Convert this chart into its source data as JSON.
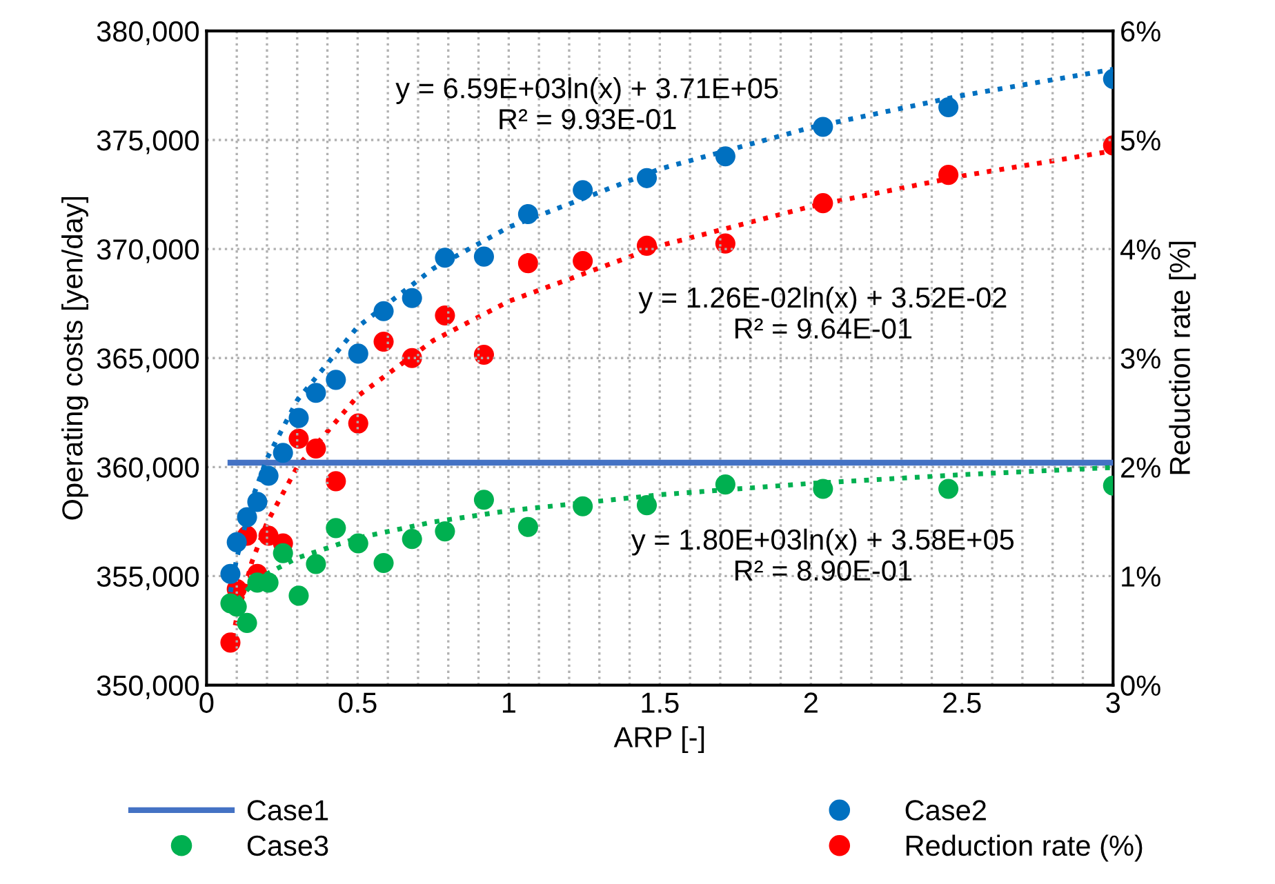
{
  "chart_data": {
    "type": "scatter",
    "xlabel": "ARP [-]",
    "ylabel": "Operating costs [yen/day]",
    "y2label": "Reduction rate [%]",
    "xlim": [
      0,
      3
    ],
    "ylim": [
      350000,
      380000
    ],
    "y2lim": [
      0,
      6
    ],
    "xticks": [
      0,
      {
        "value": 0.1,
        "label": null
      },
      {
        "value": 0.2,
        "label": null
      },
      {
        "value": 0.3,
        "label": null
      },
      {
        "value": 0.4,
        "label": null
      },
      0.5,
      {
        "value": 0.6,
        "label": null
      },
      {
        "value": 0.7,
        "label": null
      },
      {
        "value": 0.8,
        "label": null
      },
      {
        "value": 0.9,
        "label": null
      },
      1,
      {
        "value": 1.1,
        "label": null
      },
      {
        "value": 1.2,
        "label": null
      },
      {
        "value": 1.3,
        "label": null
      },
      {
        "value": 1.4,
        "label": null
      },
      1.5,
      {
        "value": 1.6,
        "label": null
      },
      {
        "value": 1.7,
        "label": null
      },
      {
        "value": 1.8,
        "label": null
      },
      {
        "value": 1.9,
        "label": null
      },
      2,
      {
        "value": 2.1,
        "label": null
      },
      {
        "value": 2.2,
        "label": null
      },
      {
        "value": 2.3,
        "label": null
      },
      {
        "value": 2.4,
        "label": null
      },
      2.5,
      {
        "value": 2.6,
        "label": null
      },
      {
        "value": 2.7,
        "label": null
      },
      {
        "value": 2.8,
        "label": null
      },
      {
        "value": 2.9,
        "label": null
      },
      3
    ],
    "yticks": [
      {
        "value": 350000,
        "label": "350,000"
      },
      {
        "value": 355000,
        "label": "355,000"
      },
      {
        "value": 360000,
        "label": "360,000"
      },
      {
        "value": 365000,
        "label": "365,000"
      },
      {
        "value": 370000,
        "label": "370,000"
      },
      {
        "value": 375000,
        "label": "375,000"
      },
      {
        "value": 380000,
        "label": "380,000"
      }
    ],
    "y2ticks": [
      {
        "value": 0,
        "label": "0%"
      },
      {
        "value": 1,
        "label": "1%"
      },
      {
        "value": 2,
        "label": "2%"
      },
      {
        "value": 3,
        "label": "3%"
      },
      {
        "value": 4,
        "label": "4%"
      },
      {
        "value": 5,
        "label": "5%"
      },
      {
        "value": 6,
        "label": "6%"
      }
    ],
    "grid": true,
    "legend": "bottom",
    "marker": "circle",
    "series": [
      {
        "name": "Case1",
        "type": "line",
        "marker": "none",
        "color": "#4472c4",
        "x": [
          0.079,
          3.0
        ],
        "values": [
          360200,
          360200
        ]
      },
      {
        "name": "Case2",
        "color": "#0070c0",
        "x": [
          0.079,
          0.1,
          0.134,
          0.168,
          0.205,
          0.253,
          0.305,
          0.362,
          0.428,
          0.502,
          0.586,
          0.68,
          0.789,
          0.918,
          1.064,
          1.245,
          1.457,
          1.717,
          2.04,
          2.455,
          3.0
        ],
        "values": [
          355100,
          356550,
          357700,
          358400,
          359600,
          360650,
          362250,
          363400,
          364000,
          365200,
          367150,
          367750,
          369600,
          369650,
          371600,
          372700,
          373250,
          374250,
          375600,
          376500,
          377800
        ]
      },
      {
        "name": "Case3",
        "color": "#00b050",
        "x": [
          0.079,
          0.1,
          0.134,
          0.168,
          0.205,
          0.253,
          0.305,
          0.362,
          0.428,
          0.502,
          0.586,
          0.68,
          0.789,
          0.918,
          1.064,
          1.245,
          1.457,
          1.717,
          2.04,
          2.455,
          3.0
        ],
        "values": [
          353750,
          353600,
          352850,
          354700,
          354700,
          356050,
          354100,
          355550,
          357200,
          356500,
          355600,
          356700,
          357050,
          358500,
          357250,
          358200,
          358250,
          359200,
          359000,
          359000,
          359150
        ]
      },
      {
        "name": "Reduction rate (%)",
        "axis": "y2",
        "color": "#ff0000",
        "x": [
          0.079,
          0.1,
          0.134,
          0.168,
          0.205,
          0.253,
          0.305,
          0.362,
          0.428,
          0.502,
          0.586,
          0.68,
          0.789,
          0.918,
          1.064,
          1.245,
          1.457,
          1.717,
          2.04,
          2.455,
          3.0
        ],
        "values": [
          0.39,
          0.88,
          1.37,
          1.02,
          1.37,
          1.3,
          2.26,
          2.17,
          1.87,
          2.4,
          3.15,
          3.0,
          3.39,
          3.03,
          3.87,
          3.89,
          4.03,
          4.05,
          4.42,
          4.68,
          4.95
        ]
      },
      {
        "type": "line",
        "marker": "none",
        "line_style": "dotted",
        "color": "#0070c0",
        "x": [
          0.079,
          0.1,
          0.15,
          0.2,
          0.3,
          0.5,
          0.75,
          1,
          1.5,
          2,
          2.5,
          3
        ],
        "values": [
          354270,
          355830,
          358500,
          360390,
          363060,
          366430,
          369100,
          371000,
          373670,
          375570,
          377040,
          378240
        ]
      },
      {
        "type": "line",
        "marker": "none",
        "line_style": "dotted",
        "color": "#00b050",
        "x": [
          0.079,
          0.1,
          0.15,
          0.2,
          0.3,
          0.5,
          0.75,
          1,
          1.5,
          2,
          2.5,
          3
        ],
        "values": [
          353430,
          353860,
          354590,
          355100,
          355830,
          356750,
          357480,
          358000,
          358730,
          359250,
          359650,
          359980
        ]
      },
      {
        "type": "line",
        "marker": "none",
        "line_style": "dotted",
        "axis": "y2",
        "color": "#ff0000",
        "x": [
          0.079,
          0.1,
          0.15,
          0.2,
          0.3,
          0.5,
          0.75,
          1,
          1.5,
          2,
          2.5,
          3
        ],
        "values": [
          0.32,
          0.62,
          1.13,
          1.49,
          2.0,
          2.65,
          3.16,
          3.52,
          4.03,
          4.39,
          4.67,
          4.9
        ]
      }
    ],
    "annotations": [
      "y = 6.59E+03ln(x) + 3.71E+05\nR² = 9.93E-01",
      "y = 1.26E-02ln(x) + 3.52E-02\nR² = 9.64E-01",
      "y = 1.80E+03ln(x) + 3.58E+05\nR² = 8.90E-01"
    ]
  }
}
